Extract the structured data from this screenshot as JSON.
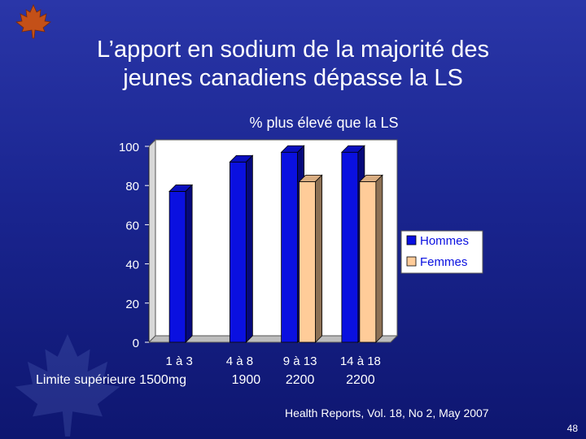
{
  "slide": {
    "title": "L’apport en sodium de la majorité des\njeunes canadiens dépasse la LS",
    "source": "Health Reports, Vol. 18, No 2,  May 2007",
    "page_number": "48"
  },
  "chart_data": {
    "type": "bar",
    "title": "% plus élevé que la LS",
    "categories": [
      "1 à 3",
      "4 à 8",
      "9 à 13",
      "14 à 18"
    ],
    "series": [
      {
        "name": "Hommes",
        "values": [
          77,
          92,
          97,
          97
        ],
        "color": "#0a10e0"
      },
      {
        "name": "Femmes",
        "values": [
          null,
          null,
          82,
          82
        ],
        "color": "#ffcc99"
      }
    ],
    "ylim": [
      0,
      100
    ],
    "yticks": [
      0,
      20,
      40,
      60,
      80,
      100
    ],
    "grid": false,
    "legend_position": "right",
    "limit_row": {
      "label": "Limite supérieure 1500mg",
      "values": [
        "",
        "1900",
        "2200",
        "2200"
      ]
    }
  }
}
